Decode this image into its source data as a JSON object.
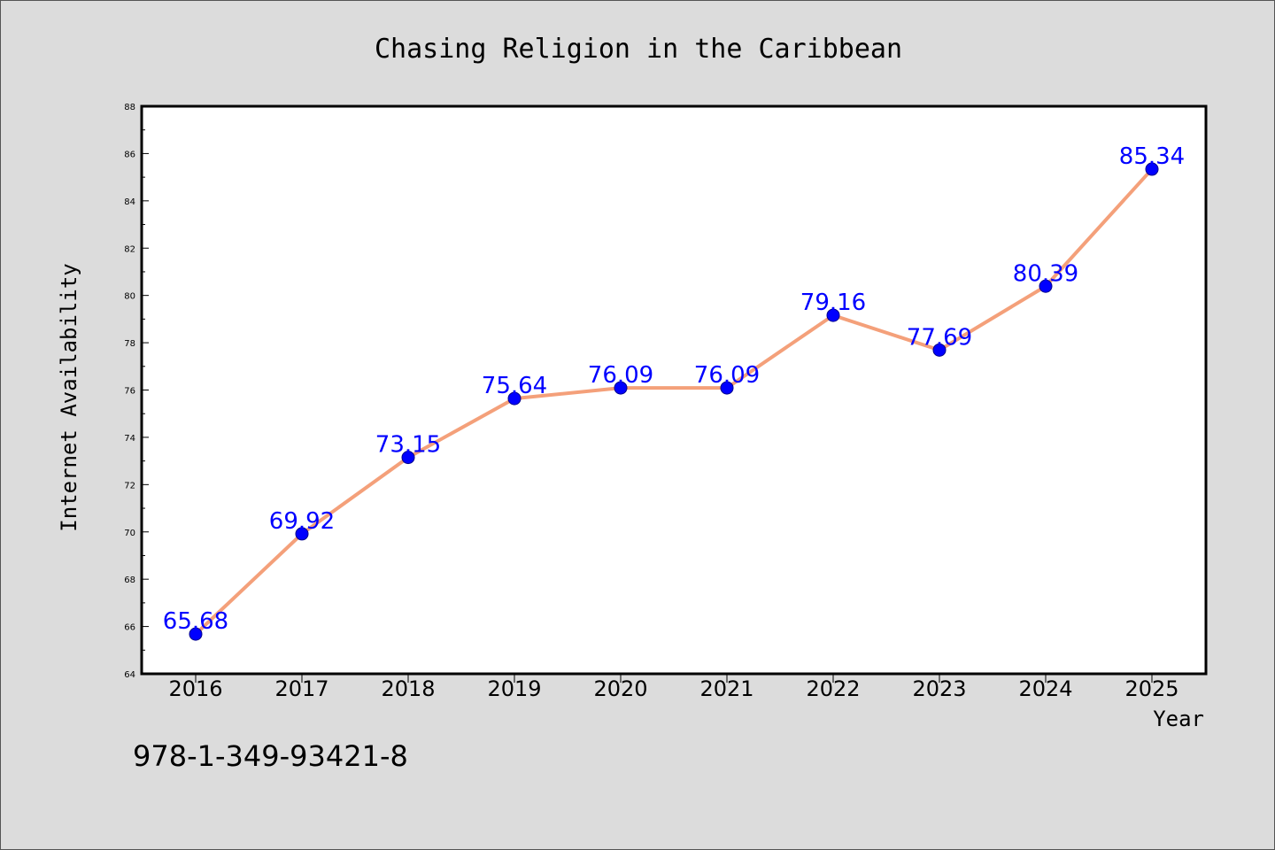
{
  "chart_data": {
    "type": "line",
    "title": "Chasing Religion in the Caribbean",
    "xlabel": "Year",
    "ylabel": "Internet Availability",
    "categories": [
      "2016",
      "2017",
      "2018",
      "2019",
      "2020",
      "2021",
      "2022",
      "2023",
      "2024",
      "2025"
    ],
    "series": [
      {
        "values": [
          65.68,
          69.92,
          73.15,
          75.64,
          76.09,
          76.09,
          79.16,
          77.69,
          80.39,
          85.34
        ],
        "labels": [
          "65.68",
          "69.92",
          "73.15",
          "75.64",
          "76.09",
          "76.09",
          "79.16",
          "77.69",
          "80.39",
          "85.34"
        ]
      }
    ],
    "ylim": [
      64,
      88
    ],
    "yticks": [
      "64",
      "66",
      "68",
      "70",
      "72",
      "74",
      "76",
      "78",
      "80",
      "82",
      "84",
      "86",
      "88"
    ],
    "grid": false,
    "legend": "none",
    "colors": {
      "line": "#f4a07a",
      "marker": "#0000ff",
      "label": "#0000ff",
      "background": "#dcdcdc",
      "plot_background": "#ffffff"
    }
  },
  "annotation": {
    "isbn": "978-1-349-93421-8"
  }
}
